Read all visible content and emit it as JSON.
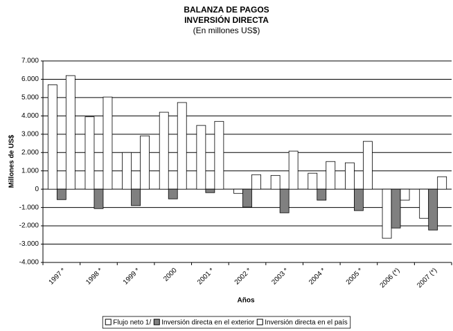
{
  "chart_data": {
    "type": "bar",
    "title": [
      "BALANZA DE PAGOS",
      "INVERSIÓN DIRECTA",
      "(En millones US$)"
    ],
    "x_label": "Años",
    "y_label": "Millones de US$",
    "categories": [
      "1997 *",
      "1998 *",
      "1999 *",
      "2000",
      "2001 *",
      "2002 *",
      "2003 *",
      "2004 *",
      "2005 *",
      "2006 (*)",
      "2007 (*)"
    ],
    "series": [
      {
        "name": "Flujo neto 1/",
        "color": "#ffffff",
        "values": [
          5700,
          3950,
          2000,
          4200,
          3480,
          -230,
          750,
          870,
          1440,
          -2680,
          -1590
        ]
      },
      {
        "name": "Inversión directa en el exterior",
        "color": "#808080",
        "values": [
          -570,
          -1060,
          -900,
          -530,
          -190,
          -980,
          -1290,
          -600,
          -1170,
          -2120,
          -2230
        ]
      },
      {
        "name": "Inversión directa en el país",
        "color": "#ffffff",
        "values": [
          6200,
          5030,
          2910,
          4730,
          3700,
          790,
          2080,
          1510,
          2610,
          -600,
          680
        ]
      }
    ],
    "ylim": [
      -4000,
      7000
    ],
    "yticks": [
      {
        "value": -4000,
        "label": "-4.000"
      },
      {
        "value": -3000,
        "label": "-3.000"
      },
      {
        "value": -2000,
        "label": "-2.000"
      },
      {
        "value": -1000,
        "label": "-1.000"
      },
      0,
      {
        "value": 1000,
        "label": "1.000"
      },
      {
        "value": 2000,
        "label": "2.000"
      },
      {
        "value": 3000,
        "label": "3.000"
      },
      {
        "value": 4000,
        "label": "4.000"
      },
      {
        "value": 5000,
        "label": "5.000"
      },
      {
        "value": 6000,
        "label": "6.000"
      },
      {
        "value": 7000,
        "label": "7.000"
      }
    ],
    "grid": true,
    "legend": "bottom"
  }
}
